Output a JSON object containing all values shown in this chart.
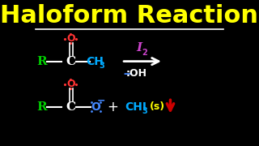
{
  "title": "Haloform Reaction",
  "title_color": "#FFFF00",
  "title_fontsize": 22,
  "background_color": "#000000",
  "line_color": "#FFFFFF",
  "arrow_color": "#FFFFFF",
  "top_row": {
    "R_color": "#00CC00",
    "R_text": "R",
    "C_color": "#FFFFFF",
    "C_text": "C",
    "O_color": "#FF3333",
    "O_text": "O",
    "CH3_color": "#00AAFF",
    "CH3_text": "CH",
    "CH3_sub": "3",
    "I2_color": "#CC44CC",
    "I2_text": "I",
    "I2_sub": "2",
    "OH_color": "#FFFFFF",
    "dash_color": "#4488FF"
  },
  "bottom_row": {
    "R_color": "#00CC00",
    "R_text": "R",
    "C_color": "#FFFFFF",
    "C_text": "C",
    "O_color": "#FF3333",
    "O_text": "O",
    "O2_color": "#4488FF",
    "O2_text": "O",
    "plus_color": "#FFFFFF",
    "plus_text": "+",
    "CHI3_color": "#00AAFF",
    "CHI3_text": "CHI",
    "CHI3_sub": "3",
    "solid_color": "#FFFF00",
    "solid_text": "(s)",
    "arrow_down_color": "#CC0000",
    "neg_color": "#4488FF",
    "neg_text": "−"
  }
}
